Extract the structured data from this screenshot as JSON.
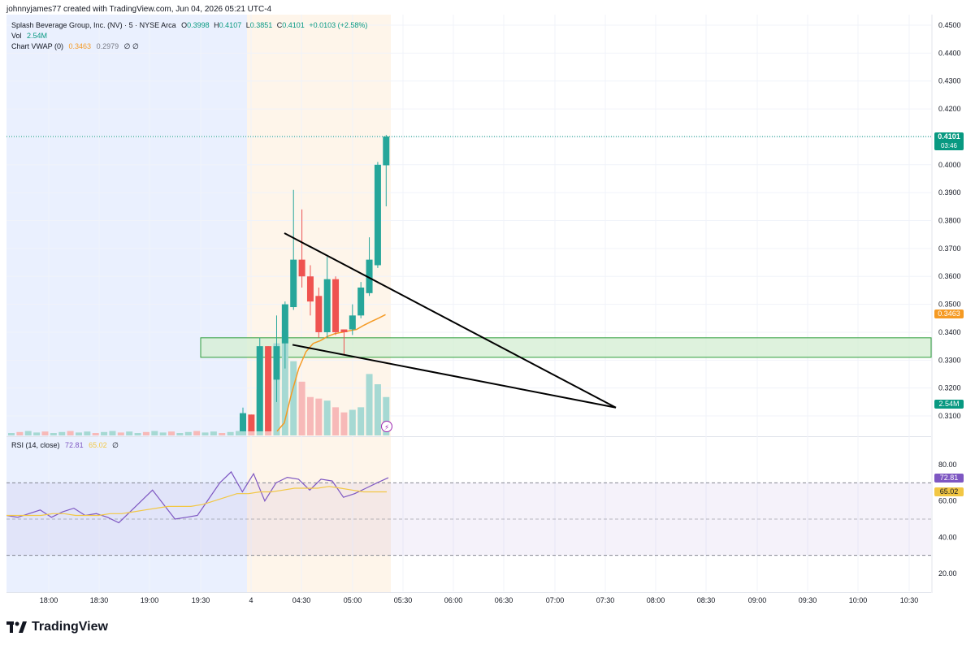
{
  "header": {
    "attribution": "johnnyjames77 created with TradingView.com, Jun 04, 2026 05:21 UTC-4"
  },
  "legend": {
    "symbol": "Splash Beverage Group, Inc. (NV) · 5 · NYSE Arca",
    "open_label": "O",
    "open": "0.3998",
    "high_label": "H",
    "high": "0.4107",
    "low_label": "L",
    "low": "0.3851",
    "close_label": "C",
    "close": "0.4101",
    "change": "+0.0103 (+2.58%)",
    "vol_label": "Vol",
    "vol": "2.54M",
    "vwap_label": "Chart VWAP (0)",
    "vwap_value": "0.3463",
    "vwap_value2": "0.2979",
    "vwap_extra": "∅  ∅",
    "rsi_label": "RSI (14, close)",
    "rsi_value": "72.81",
    "rsi_ma": "65.02",
    "rsi_extra": "∅"
  },
  "badges": {
    "last_price": "0.4101",
    "countdown": "03:46",
    "vwap": "0.3463",
    "volume": "2.54M",
    "rsi": "72.81",
    "rsi_ma": "65.02"
  },
  "colors": {
    "up": "#26a69a",
    "down": "#ef5350",
    "vwap": "#f59a23",
    "rsi": "#7e57c2",
    "rsi_ma": "#f2c744",
    "premarket_bg": "#eaf0fe",
    "afterhours_bg": "#fef5ea",
    "zone_fill": "#d6efd4",
    "zone_stroke": "#2e9e3a"
  },
  "watermark": {
    "text": "TradingView",
    "icon": "tradingview-logo-icon"
  },
  "chart_data": {
    "type": "candlestick",
    "interval": "5",
    "price_axis": {
      "ticks": [
        "0.4500",
        "0.4400",
        "0.4300",
        "0.4200",
        "0.4100",
        "0.4000",
        "0.3900",
        "0.3800",
        "0.3700",
        "0.3600",
        "0.3500",
        "0.3400",
        "0.3300",
        "0.3200",
        "0.3100"
      ],
      "ylim": [
        0.3045,
        0.453
      ]
    },
    "time_axis": {
      "ticks": [
        "18:00",
        "18:30",
        "19:00",
        "19:30",
        "4",
        "04:30",
        "05:00",
        "05:30",
        "06:00",
        "06:30",
        "07:00",
        "07:30",
        "08:00",
        "08:30",
        "09:00",
        "09:30",
        "10:00",
        "10:30"
      ]
    },
    "rsi_axis": {
      "ticks": [
        "80.00",
        "60.00",
        "40.00",
        "20.00"
      ],
      "ylim": [
        10,
        90
      ],
      "upper_band": 70,
      "lower_band": 30,
      "mid": 50
    },
    "candles": [
      {
        "t": "04:05",
        "o": 0.3045,
        "h": 0.313,
        "l": 0.3045,
        "c": 0.311
      },
      {
        "t": "04:10",
        "o": 0.3105,
        "h": 0.3105,
        "l": 0.3045,
        "c": 0.3045
      },
      {
        "t": "04:15",
        "o": 0.3045,
        "h": 0.338,
        "l": 0.3045,
        "c": 0.335
      },
      {
        "t": "04:20",
        "o": 0.335,
        "h": 0.335,
        "l": 0.3045,
        "c": 0.3045
      },
      {
        "t": "04:25",
        "o": 0.323,
        "h": 0.346,
        "l": 0.315,
        "c": 0.335
      },
      {
        "t": "04:30",
        "o": 0.336,
        "h": 0.351,
        "l": 0.327,
        "c": 0.35
      },
      {
        "t": "04:35",
        "o": 0.349,
        "h": 0.391,
        "l": 0.348,
        "c": 0.366
      },
      {
        "t": "04:40",
        "o": 0.366,
        "h": 0.384,
        "l": 0.356,
        "c": 0.36
      },
      {
        "t": "04:45",
        "o": 0.36,
        "h": 0.364,
        "l": 0.346,
        "c": 0.351
      },
      {
        "t": "04:50",
        "o": 0.353,
        "h": 0.356,
        "l": 0.338,
        "c": 0.34
      },
      {
        "t": "04:55",
        "o": 0.34,
        "h": 0.367,
        "l": 0.338,
        "c": 0.359
      },
      {
        "t": "05:00",
        "o": 0.359,
        "h": 0.36,
        "l": 0.339,
        "c": 0.34
      },
      {
        "t": "05:05",
        "o": 0.341,
        "h": 0.341,
        "l": 0.332,
        "c": 0.34
      },
      {
        "t": "05:10",
        "o": 0.341,
        "h": 0.35,
        "l": 0.339,
        "c": 0.346
      },
      {
        "t": "05:15",
        "o": 0.346,
        "h": 0.358,
        "l": 0.345,
        "c": 0.356
      },
      {
        "t": "05:20",
        "o": 0.354,
        "h": 0.374,
        "l": 0.353,
        "c": 0.366
      },
      {
        "t": "05:25",
        "o": 0.364,
        "h": 0.401,
        "l": 0.363,
        "c": 0.4
      },
      {
        "t": "05:30",
        "o": 0.3998,
        "h": 0.4107,
        "l": 0.3851,
        "c": 0.4101
      }
    ],
    "overnight_volume_series": "flat",
    "session_volume": [
      0.35,
      0.12,
      0.9,
      1.0,
      1.8,
      2.05,
      1.45,
      1.05,
      0.75,
      0.72,
      0.68,
      0.55,
      0.45,
      0.5,
      0.55,
      1.2,
      1.0,
      0.75
    ],
    "vwap": [
      0.3045,
      0.3075,
      0.318,
      0.327,
      0.333,
      0.336,
      0.337,
      0.3385,
      0.3395,
      0.34,
      0.3405,
      0.341,
      0.3425,
      0.3438,
      0.345,
      0.3463
    ],
    "rsi": [
      52,
      51,
      53,
      55,
      51,
      54,
      56,
      52,
      53,
      51,
      48,
      54,
      60,
      66,
      58,
      50,
      51,
      52,
      61,
      70,
      76,
      65,
      75,
      60,
      70,
      73,
      72,
      66,
      72,
      71,
      62,
      64,
      67,
      70,
      72.81
    ],
    "rsi_ma": [
      52,
      52,
      52,
      52,
      53,
      53,
      52,
      52,
      52,
      53,
      53,
      54,
      55,
      56,
      57,
      57,
      57,
      58,
      60,
      62,
      64,
      64,
      65,
      65,
      66,
      67,
      67,
      67,
      68,
      67,
      66,
      65,
      65,
      65.02
    ],
    "zone": [
      0.338,
      0.331
    ],
    "trendlines": [
      {
        "from": [
          "04:35",
          0.3755
        ],
        "to": [
          "07:35",
          0.313
        ]
      },
      {
        "from": [
          "04:35",
          0.3355
        ],
        "to": [
          "07:35",
          0.313
        ]
      }
    ]
  }
}
